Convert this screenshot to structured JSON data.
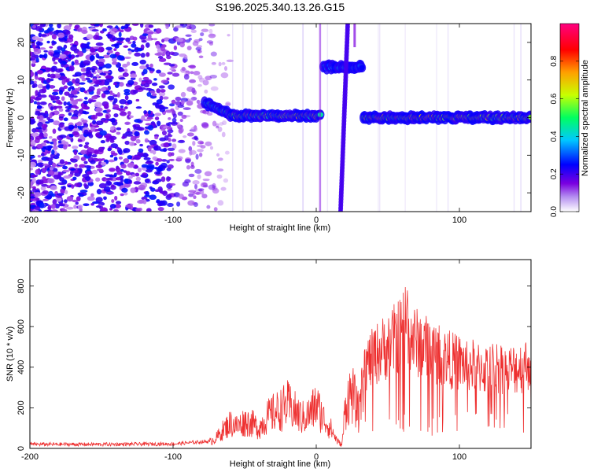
{
  "title": "S196.2025.340.13.26.G15",
  "chart_data": [
    {
      "type": "heatmap",
      "name": "spectrogram",
      "xlabel": "Height of straight line (km)",
      "ylabel": "Frequency (Hz)",
      "xlim": [
        -200,
        150
      ],
      "ylim": [
        -25,
        25
      ],
      "xticks": [
        -200,
        -100,
        0,
        100
      ],
      "xtick_labels": [
        "-200",
        "-100",
        "0",
        "100"
      ],
      "yticks": [
        -20,
        -10,
        0,
        10,
        20
      ],
      "ytick_labels": [
        "-20",
        "-10",
        "0",
        "10",
        "20"
      ],
      "colorbar": {
        "label": "Normalized spectral amplitude",
        "range": [
          0,
          1
        ],
        "ticks": [
          0,
          0.2,
          0.4,
          0.6,
          0.8
        ],
        "tick_labels": [
          "0.0",
          "0.2",
          "0.4",
          "0.6",
          "0.8"
        ],
        "colormap": [
          "#ffffff",
          "#7a00e0",
          "#0000ff",
          "#00c8ff",
          "#00ff60",
          "#c8ff00",
          "#ffa000",
          "#ff0000",
          "#ff0080"
        ]
      },
      "features": [
        {
          "label": "noise",
          "x_range": [
            -200,
            -75
          ],
          "freq_range": [
            -25,
            25
          ],
          "amplitude": "low-moderate"
        },
        {
          "label": "tone onset",
          "x_range": [
            -78,
            -60
          ],
          "freq_start": 4,
          "freq_end": 1
        },
        {
          "label": "tone",
          "x_range": [
            -60,
            3
          ],
          "freq": 0.5
        },
        {
          "label": "upper branch",
          "x_range": [
            5,
            32
          ],
          "freq": 13.5
        },
        {
          "label": "crossing streak",
          "x_range": [
            17,
            22
          ],
          "freq_range": [
            -25,
            25
          ]
        },
        {
          "label": "tone",
          "x_range": [
            33,
            150
          ],
          "freq": 0
        }
      ]
    },
    {
      "type": "line",
      "name": "snr",
      "xlabel": "Height of straight line (km)",
      "ylabel": "SNR (10 * v/v)",
      "xlim": [
        -200,
        150
      ],
      "ylim": [
        0,
        930
      ],
      "xticks": [
        -200,
        -100,
        0,
        100
      ],
      "xtick_labels": [
        "-200",
        "-100",
        "0",
        "100"
      ],
      "yticks": [
        0,
        200,
        400,
        600,
        800
      ],
      "ytick_labels": [
        "0",
        "200",
        "400",
        "600",
        "800"
      ],
      "color": "#ee3030",
      "series": [
        {
          "name": "SNR",
          "x": [
            -200,
            -150,
            -100,
            -75,
            -70,
            -65,
            -60,
            -55,
            -50,
            -45,
            -40,
            -35,
            -30,
            -25,
            -20,
            -15,
            -10,
            -5,
            0,
            5,
            10,
            15,
            18,
            20,
            22,
            25,
            30,
            33,
            35,
            40,
            45,
            50,
            55,
            60,
            63,
            65,
            70,
            75,
            80,
            85,
            90,
            95,
            100,
            105,
            110,
            115,
            120,
            125,
            130,
            135,
            140,
            145,
            150
          ],
          "y": [
            20,
            20,
            22,
            35,
            60,
            110,
            150,
            130,
            160,
            150,
            120,
            180,
            210,
            230,
            260,
            220,
            180,
            200,
            260,
            180,
            120,
            40,
            20,
            220,
            300,
            330,
            200,
            450,
            460,
            500,
            540,
            560,
            600,
            640,
            750,
            620,
            580,
            560,
            540,
            520,
            500,
            480,
            470,
            460,
            450,
            440,
            430,
            450,
            440,
            430,
            440,
            450,
            480
          ]
        }
      ]
    }
  ]
}
